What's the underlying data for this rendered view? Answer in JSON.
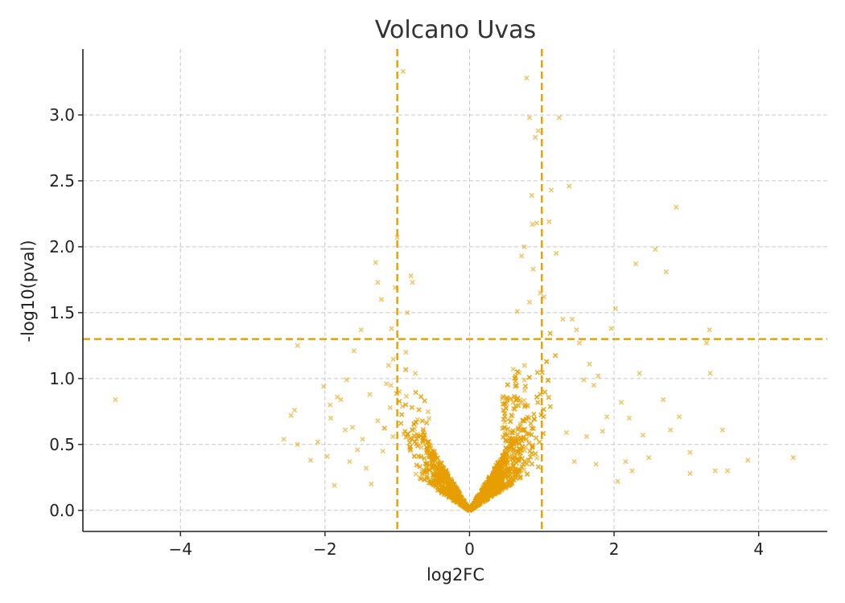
{
  "chart_data": {
    "type": "scatter",
    "title": "Volcano Uvas",
    "xlabel": "log2FC",
    "ylabel": "-log10(pval)",
    "xlim": [
      -5.35,
      4.95
    ],
    "ylim": [
      -0.16,
      3.5
    ],
    "xticks": [
      {
        "value": -4,
        "label": "−4"
      },
      {
        "value": -2,
        "label": "−2"
      },
      {
        "value": 0,
        "label": "0"
      },
      {
        "value": 2,
        "label": "2"
      },
      {
        "value": 4,
        "label": "4"
      }
    ],
    "yticks": [
      {
        "value": 0.0,
        "label": "0.0"
      },
      {
        "value": 0.5,
        "label": "0.5"
      },
      {
        "value": 1.0,
        "label": "1.0"
      },
      {
        "value": 1.5,
        "label": "1.5"
      },
      {
        "value": 2.0,
        "label": "2.0"
      },
      {
        "value": 2.5,
        "label": "2.5"
      },
      {
        "value": 3.0,
        "label": "3.0"
      }
    ],
    "grid": true,
    "marker": "x",
    "color": "#E69F00",
    "thresholds": {
      "log2fc": [
        -1,
        1
      ],
      "neg_log10_pval": 1.3
    },
    "series": [
      {
        "points": [
          [
            -4.9,
            0.84
          ],
          [
            -2.57,
            0.54
          ],
          [
            -2.42,
            0.76
          ],
          [
            -2.47,
            0.72
          ],
          [
            -2.38,
            0.5
          ],
          [
            -2.38,
            1.25
          ],
          [
            -2.2,
            0.38
          ],
          [
            -2.1,
            0.52
          ],
          [
            -2.02,
            0.94
          ],
          [
            -1.97,
            0.41
          ],
          [
            -1.92,
            0.7
          ],
          [
            -1.93,
            0.8
          ],
          [
            -1.87,
            0.19
          ],
          [
            -1.83,
            0.86
          ],
          [
            -1.78,
            0.84
          ],
          [
            -1.72,
            0.61
          ],
          [
            -1.7,
            0.99
          ],
          [
            -1.66,
            0.37
          ],
          [
            -1.62,
            0.63
          ],
          [
            -1.6,
            1.21
          ],
          [
            -1.55,
            0.46
          ],
          [
            -1.5,
            1.37
          ],
          [
            -1.48,
            0.54
          ],
          [
            -1.43,
            0.32
          ],
          [
            -1.38,
            0.88
          ],
          [
            -1.36,
            0.2
          ],
          [
            -1.3,
            1.88
          ],
          [
            -1.27,
            1.73
          ],
          [
            -1.27,
            0.68
          ],
          [
            -1.22,
            1.6
          ],
          [
            -1.2,
            0.45
          ],
          [
            -1.15,
            0.96
          ],
          [
            -1.12,
            1.1
          ],
          [
            -1.08,
            1.38
          ],
          [
            -1.06,
            0.56
          ],
          [
            -1.03,
            1.69
          ],
          [
            -1.0,
            2.07
          ],
          [
            -0.93,
            0.79
          ],
          [
            -0.88,
            1.2
          ],
          [
            -0.86,
            1.5
          ],
          [
            -0.81,
            1.78
          ],
          [
            -0.79,
            1.73
          ],
          [
            -0.75,
            1.04
          ],
          [
            -0.72,
            0.69
          ],
          [
            -0.65,
            0.51
          ],
          [
            -0.92,
            3.33
          ],
          [
            -0.97,
            0.9
          ],
          [
            -1.1,
            0.78
          ],
          [
            0.66,
            1.51
          ],
          [
            0.76,
            2.0
          ],
          [
            0.72,
            1.93
          ],
          [
            0.79,
            3.28
          ],
          [
            0.83,
            2.98
          ],
          [
            0.83,
            1.58
          ],
          [
            0.86,
            2.39
          ],
          [
            0.87,
            2.17
          ],
          [
            0.88,
            1.83
          ],
          [
            0.91,
            2.83
          ],
          [
            0.93,
            2.18
          ],
          [
            0.95,
            2.88
          ],
          [
            0.98,
            1.65
          ],
          [
            1.03,
            1.62
          ],
          [
            1.1,
            2.19
          ],
          [
            1.13,
            2.43
          ],
          [
            1.2,
            1.95
          ],
          [
            1.24,
            2.98
          ],
          [
            1.29,
            1.45
          ],
          [
            1.38,
            2.46
          ],
          [
            1.42,
            1.45
          ],
          [
            1.48,
            1.37
          ],
          [
            1.52,
            1.27
          ],
          [
            1.58,
            0.99
          ],
          [
            1.66,
            1.11
          ],
          [
            1.72,
            0.95
          ],
          [
            1.78,
            1.02
          ],
          [
            1.84,
            0.6
          ],
          [
            1.9,
            0.71
          ],
          [
            1.96,
            1.38
          ],
          [
            2.02,
            1.53
          ],
          [
            2.05,
            0.22
          ],
          [
            2.1,
            0.82
          ],
          [
            2.16,
            0.37
          ],
          [
            2.25,
            0.3
          ],
          [
            2.3,
            1.87
          ],
          [
            2.35,
            1.04
          ],
          [
            2.4,
            0.57
          ],
          [
            2.48,
            0.4
          ],
          [
            2.57,
            1.98
          ],
          [
            2.68,
            0.84
          ],
          [
            2.72,
            1.81
          ],
          [
            2.78,
            0.61
          ],
          [
            2.86,
            2.3
          ],
          [
            2.9,
            0.71
          ],
          [
            3.05,
            0.44
          ],
          [
            3.05,
            0.28
          ],
          [
            3.28,
            1.27
          ],
          [
            3.32,
            1.37
          ],
          [
            3.33,
            1.04
          ],
          [
            3.4,
            0.3
          ],
          [
            3.5,
            0.61
          ],
          [
            3.57,
            0.3
          ],
          [
            3.85,
            0.38
          ],
          [
            4.48,
            0.4
          ],
          [
            1.34,
            0.59
          ],
          [
            1.45,
            0.37
          ],
          [
            2.21,
            0.7
          ],
          [
            1.75,
            0.35
          ],
          [
            1.62,
            0.56
          ]
        ]
      }
    ]
  }
}
